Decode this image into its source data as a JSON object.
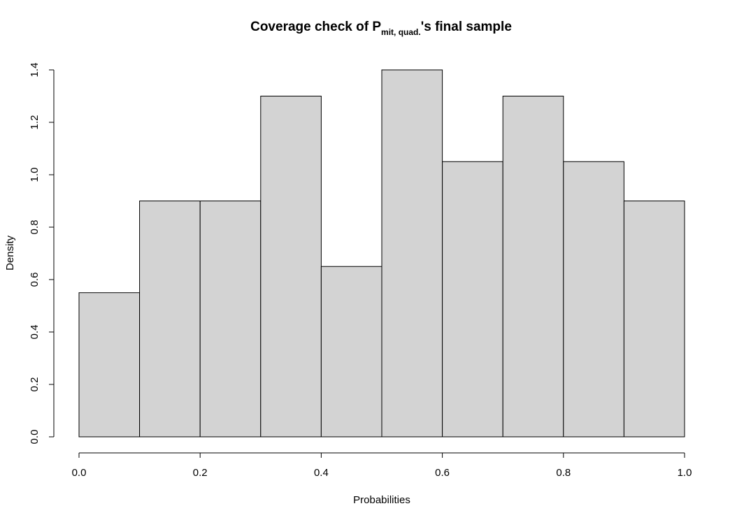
{
  "chart_data": {
    "type": "bar",
    "title": {
      "main": "Coverage check of P",
      "subscript": "mit, quad.",
      "suffix": "'s final sample"
    },
    "xlabel": "Probabilities",
    "ylabel": "Density",
    "bins": [
      {
        "from": 0.0,
        "to": 0.1,
        "density": 0.55
      },
      {
        "from": 0.1,
        "to": 0.2,
        "density": 0.9
      },
      {
        "from": 0.2,
        "to": 0.3,
        "density": 0.9
      },
      {
        "from": 0.3,
        "to": 0.4,
        "density": 1.3
      },
      {
        "from": 0.4,
        "to": 0.5,
        "density": 0.65
      },
      {
        "from": 0.5,
        "to": 0.6,
        "density": 1.4
      },
      {
        "from": 0.6,
        "to": 0.7,
        "density": 1.05
      },
      {
        "from": 0.7,
        "to": 0.8,
        "density": 1.3
      },
      {
        "from": 0.8,
        "to": 0.9,
        "density": 1.05
      },
      {
        "from": 0.9,
        "to": 1.0,
        "density": 0.9
      }
    ],
    "xlim": [
      0.0,
      1.0
    ],
    "ylim": [
      0.0,
      1.4
    ],
    "x_ticks": [
      "0.0",
      "0.2",
      "0.4",
      "0.6",
      "0.8",
      "1.0"
    ],
    "y_ticks": [
      "0.0",
      "0.2",
      "0.4",
      "0.6",
      "0.8",
      "1.0",
      "1.2",
      "1.4"
    ],
    "bar_fill": "#d3d3d3",
    "bar_stroke": "#000000",
    "grid": false,
    "legend": "none"
  }
}
